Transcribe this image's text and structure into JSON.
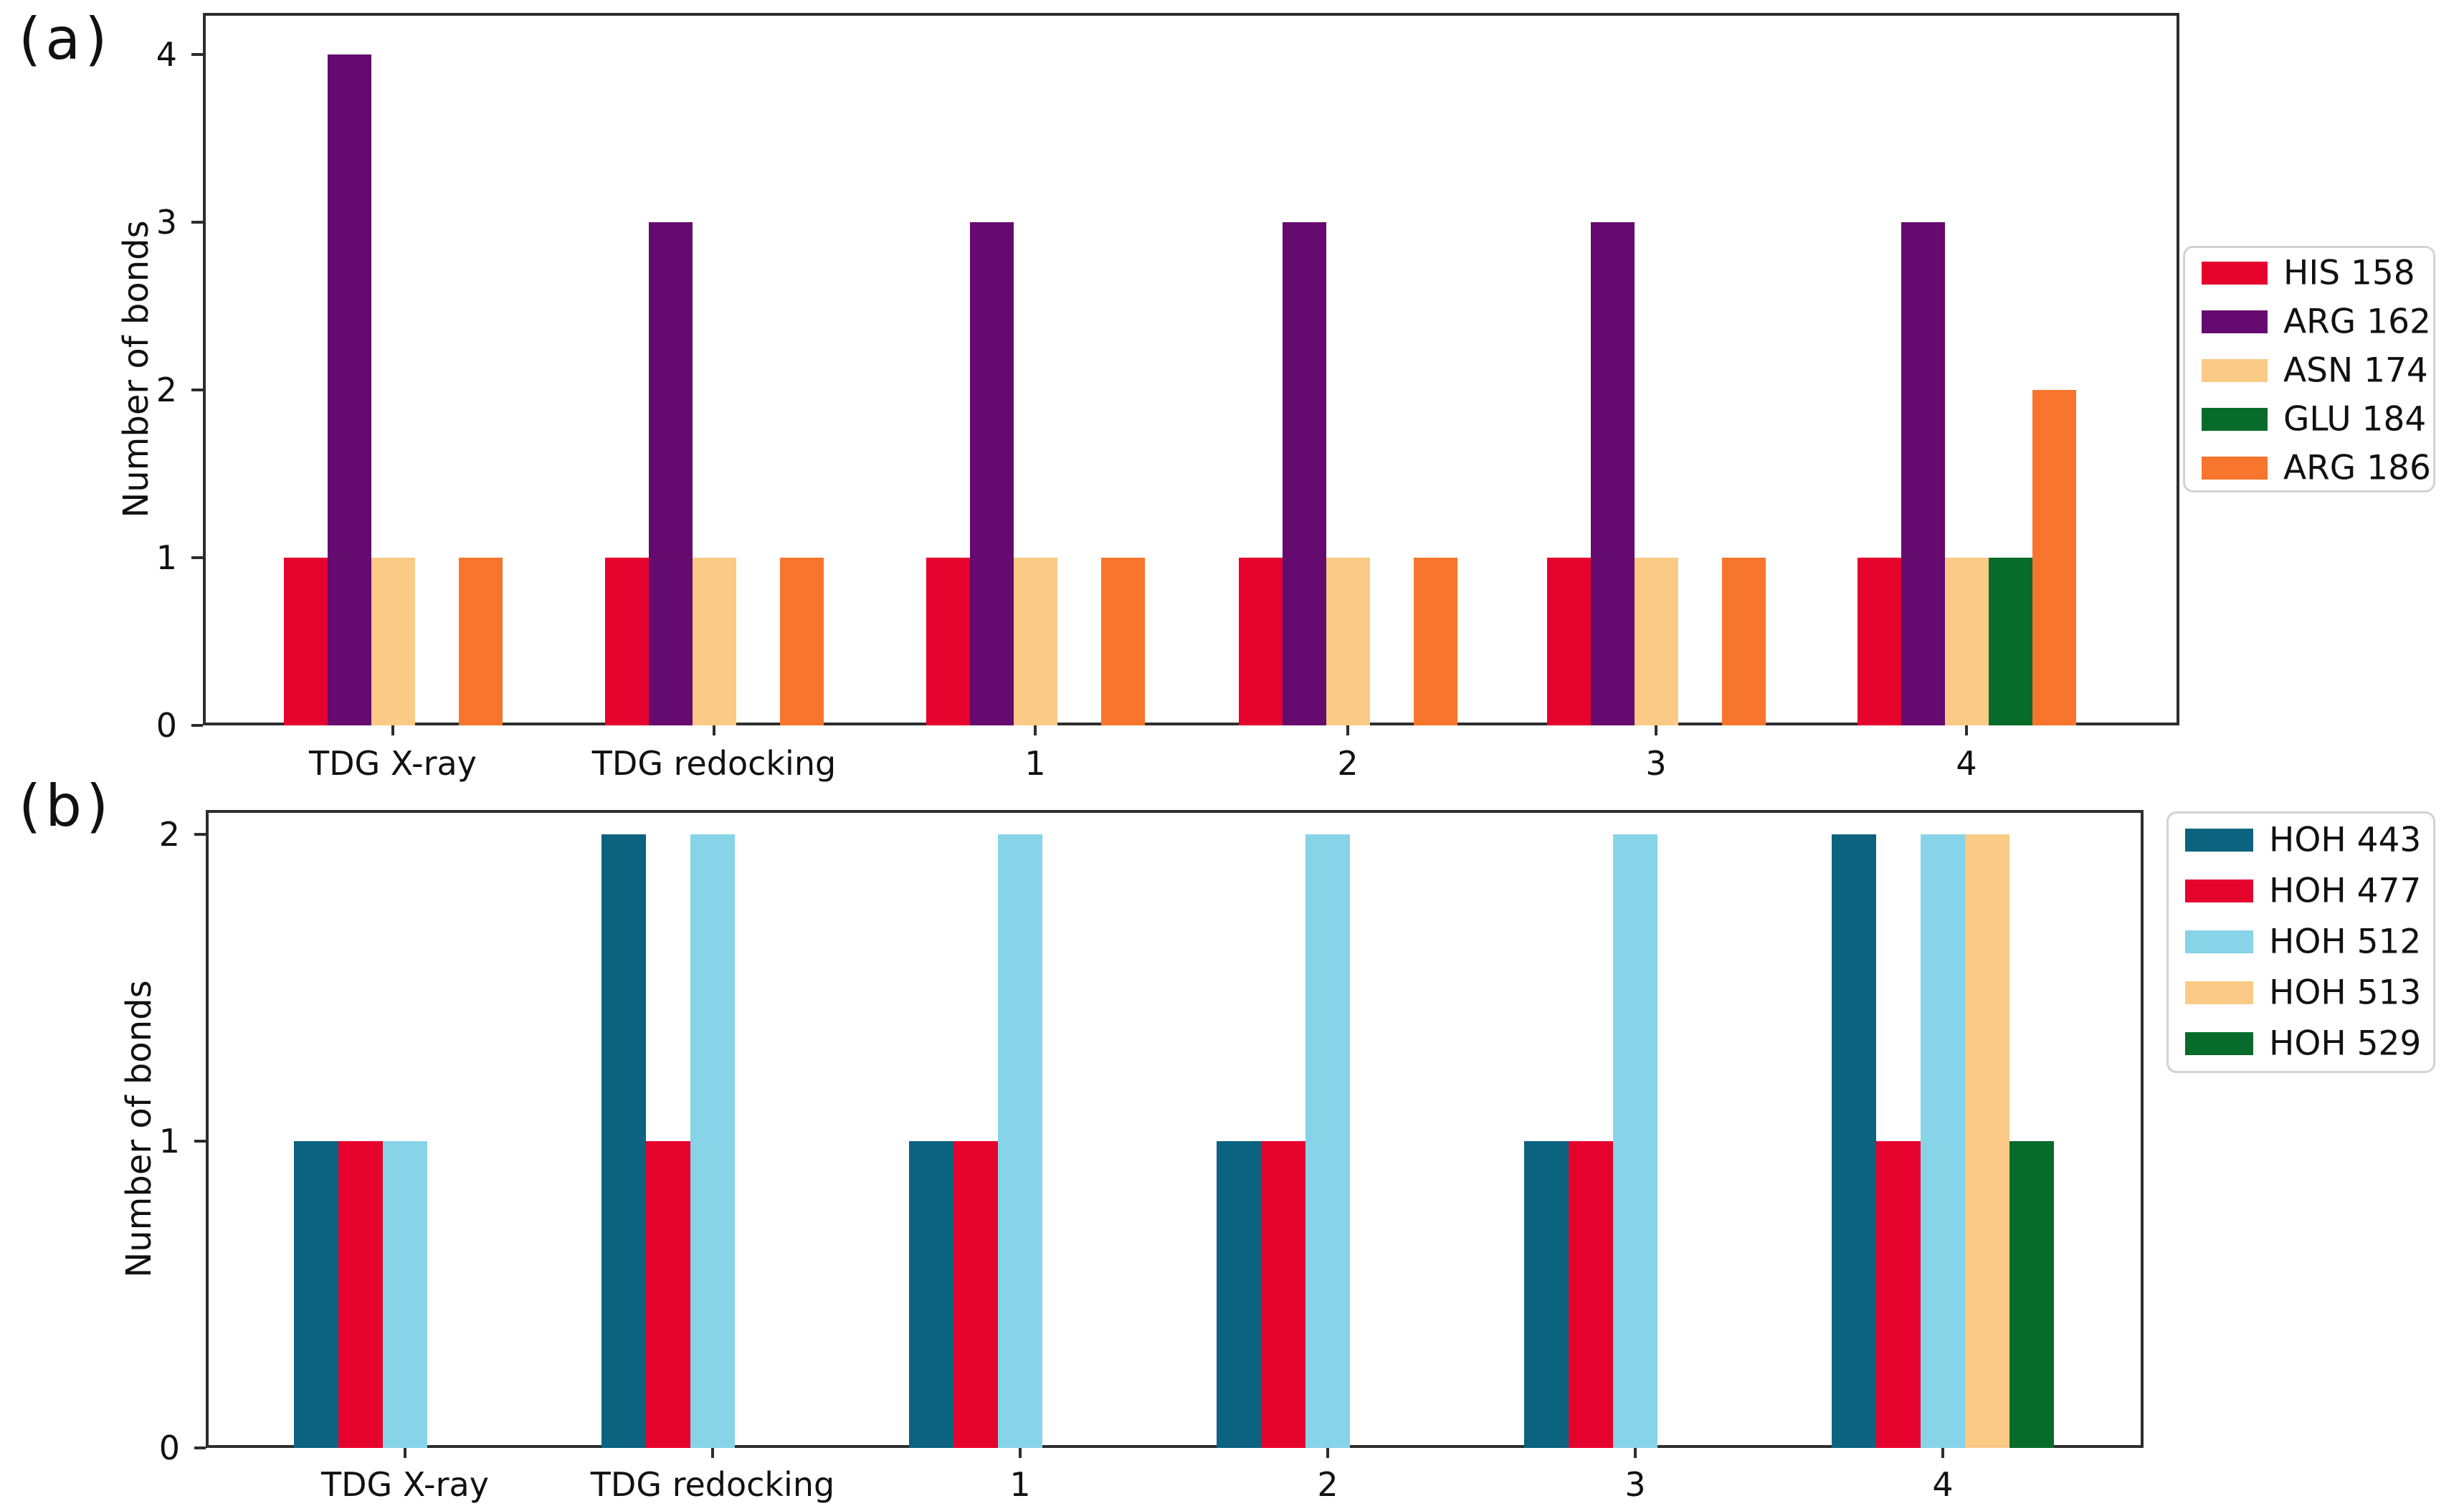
{
  "figure_title": "",
  "chart_data": [
    {
      "panel_label": "(a)",
      "type": "bar",
      "title": "",
      "xlabel": "",
      "ylabel": "Number of bonds",
      "ylim": [
        0,
        4.25
      ],
      "yticks": [
        0,
        1,
        2,
        3,
        4
      ],
      "grid": false,
      "legend_position": "right-outside",
      "categories": [
        "TDG X-ray",
        "TDG redocking",
        "1",
        "2",
        "3",
        "4"
      ],
      "series": [
        {
          "name": "HIS 158",
          "color": "#E5032E",
          "values": [
            1,
            1,
            1,
            1,
            1,
            1
          ]
        },
        {
          "name": "ARG 162",
          "color": "#650A6E",
          "values": [
            4,
            3,
            3,
            3,
            3,
            3
          ]
        },
        {
          "name": "ASN 174",
          "color": "#FACA86",
          "values": [
            1,
            1,
            1,
            1,
            1,
            1
          ]
        },
        {
          "name": "GLU 184",
          "color": "#076B2B",
          "values": [
            0,
            0,
            0,
            0,
            0,
            1
          ]
        },
        {
          "name": "ARG 186",
          "color": "#F7752C",
          "values": [
            1,
            1,
            1,
            1,
            1,
            2
          ]
        }
      ]
    },
    {
      "panel_label": "(b)",
      "type": "bar",
      "title": "",
      "xlabel": "",
      "ylabel": "Number of bonds",
      "ylim": [
        0,
        2.08
      ],
      "yticks": [
        0,
        1,
        2
      ],
      "grid": false,
      "legend_position": "right-outside",
      "categories": [
        "TDG X-ray",
        "TDG redocking",
        "1",
        "2",
        "3",
        "4"
      ],
      "series": [
        {
          "name": "HOH 443",
          "color": "#0B6380",
          "values": [
            1,
            2,
            1,
            1,
            1,
            2
          ]
        },
        {
          "name": "HOH 477",
          "color": "#E5032E",
          "values": [
            1,
            1,
            1,
            1,
            1,
            1
          ]
        },
        {
          "name": "HOH 512",
          "color": "#87D3E8",
          "values": [
            1,
            2,
            2,
            2,
            2,
            2
          ]
        },
        {
          "name": "HOH 513",
          "color": "#FACA86",
          "values": [
            0,
            0,
            0,
            0,
            0,
            2
          ]
        },
        {
          "name": "HOH 529",
          "color": "#076B2B",
          "values": [
            0,
            0,
            0,
            0,
            0,
            1
          ]
        }
      ]
    }
  ]
}
